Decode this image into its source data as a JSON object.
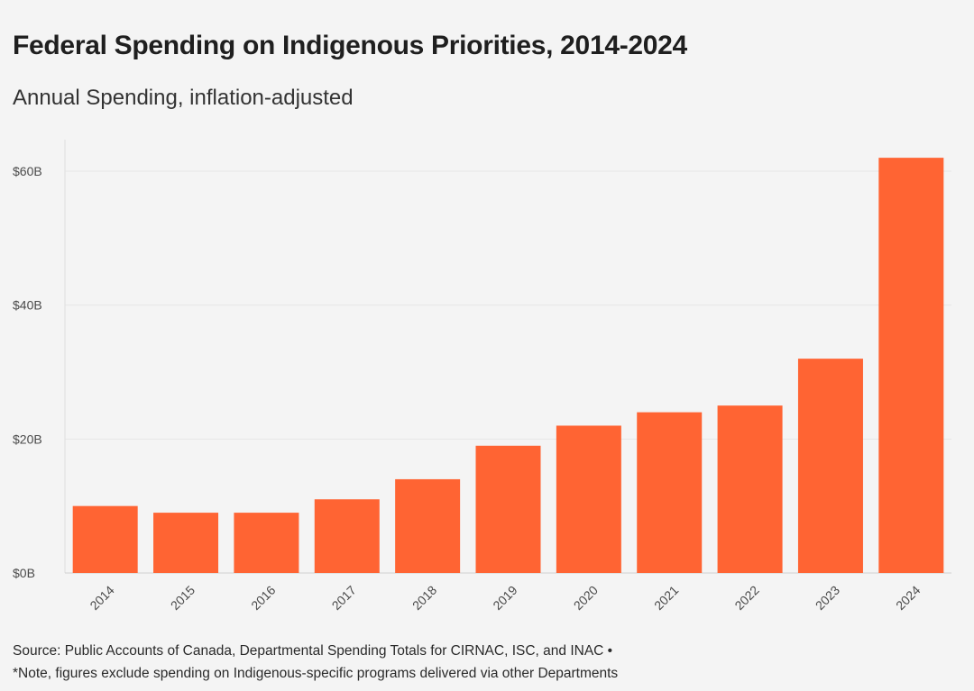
{
  "chart_data": {
    "type": "bar",
    "title": "Federal Spending on Indigenous Priorities, 2014-2024",
    "subtitle": "Annual Spending, inflation-adjusted",
    "categories": [
      "2014",
      "2015",
      "2016",
      "2017",
      "2018",
      "2019",
      "2020",
      "2021",
      "2022",
      "2023",
      "2024"
    ],
    "values": [
      10,
      9,
      9,
      11,
      14,
      19,
      22,
      24,
      25,
      32,
      62
    ],
    "unit": "billion CAD",
    "ylim": [
      0,
      64
    ],
    "yticks": [
      {
        "value": 0,
        "label": "$0B"
      },
      {
        "value": 20,
        "label": "$20B"
      },
      {
        "value": 40,
        "label": "$40B"
      },
      {
        "value": 60,
        "label": "$60B"
      }
    ],
    "xlabel": "",
    "ylabel": "",
    "grid": true,
    "bar_color": "#ff6433"
  },
  "footer": {
    "source": "Source: Public Accounts of Canada, Departmental Spending Totals for CIRNAC, ISC, and INAC •",
    "note": "*Note, figures exclude spending on Indigenous-specific programs delivered via other Departments"
  }
}
